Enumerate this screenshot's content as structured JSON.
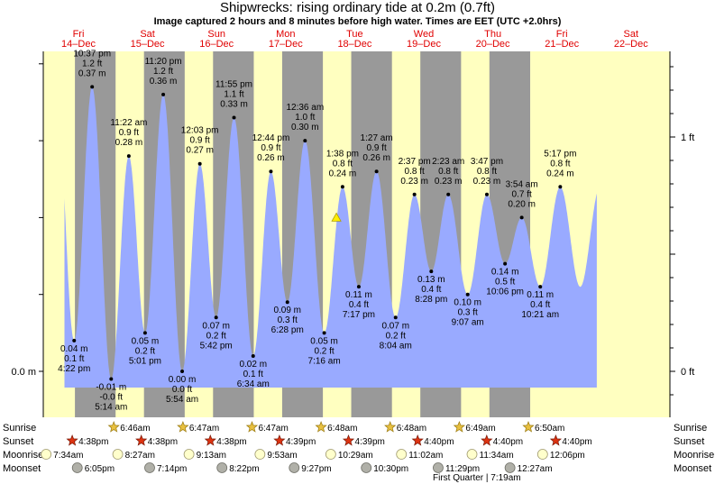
{
  "title": "Shipwrecks: rising  ordinary tide at 0.2m (0.7ft)",
  "subtitle": "Image captured 2 hours and 8 minutes before high water. Times are EET (UTC +2.0hrs)",
  "colors": {
    "day": "#ffffc0",
    "night": "#999999",
    "tide": "#99aaff",
    "date_text": "#e00000",
    "sunrise_star": "#e8c040",
    "sunset_star": "#dd3311",
    "moonrise": "#ffffcc",
    "moonset": "#b0b0a8",
    "current_marker": "#ffee00"
  },
  "chart_data": {
    "type": "area",
    "title": "Shipwrecks: rising  ordinary tide at 0.2m (0.7ft)",
    "y_unit": "m",
    "ylim": [
      -0.07,
      0.47
    ],
    "y_ticks_left": [
      {
        "value": 0.0,
        "label": "0.0 m"
      }
    ],
    "y_ticks_right": [
      {
        "value": 0.0,
        "label": "0 ft"
      },
      {
        "value": 0.3048,
        "label": "1 ft"
      }
    ],
    "days": [
      {
        "dow": "Fri",
        "date": "14–Dec"
      },
      {
        "dow": "Sat",
        "date": "15–Dec"
      },
      {
        "dow": "Sun",
        "date": "16–Dec"
      },
      {
        "dow": "Mon",
        "date": "17–Dec"
      },
      {
        "dow": "Tue",
        "date": "18–Dec"
      },
      {
        "dow": "Wed",
        "date": "19–Dec"
      },
      {
        "dow": "Thu",
        "date": "20–Dec"
      },
      {
        "dow": "Fri",
        "date": "21–Dec"
      },
      {
        "dow": "Sat",
        "date": "22–Dec"
      }
    ],
    "nights": [
      {
        "start": "2018-12-14 16:38",
        "end": "2018-12-15 06:46"
      },
      {
        "start": "2018-12-15 16:38",
        "end": "2018-12-16 06:47"
      },
      {
        "start": "2018-12-16 16:38",
        "end": "2018-12-17 06:47"
      },
      {
        "start": "2018-12-17 16:39",
        "end": "2018-12-18 06:48"
      },
      {
        "start": "2018-12-18 16:39",
        "end": "2018-12-19 06:48"
      },
      {
        "start": "2018-12-19 16:40",
        "end": "2018-12-20 06:49"
      },
      {
        "start": "2018-12-20 16:40",
        "end": "2018-12-21 06:50"
      }
    ],
    "tides": [
      {
        "time": "2018-12-14 16:22",
        "m": 0.04,
        "label": [
          "0.04 m",
          "0.1 ft",
          "4:22 pm"
        ],
        "type": "low"
      },
      {
        "time": "2018-12-14 22:37",
        "m": 0.37,
        "label": [
          "10:37 pm",
          "1.2 ft",
          "0.37 m"
        ],
        "type": "high"
      },
      {
        "time": "2018-12-15 05:14",
        "m": -0.01,
        "label": [
          "-0.01 m",
          "-0.0 ft",
          "5:14 am"
        ],
        "type": "low"
      },
      {
        "time": "2018-12-15 11:22",
        "m": 0.28,
        "label": [
          "11:22 am",
          "0.9 ft",
          "0.28 m"
        ],
        "type": "high"
      },
      {
        "time": "2018-12-15 17:01",
        "m": 0.05,
        "label": [
          "0.05 m",
          "0.2 ft",
          "5:01 pm"
        ],
        "type": "low"
      },
      {
        "time": "2018-12-15 23:20",
        "m": 0.36,
        "label": [
          "11:20 pm",
          "1.2 ft",
          "0.36 m"
        ],
        "type": "high"
      },
      {
        "time": "2018-12-16 05:54",
        "m": 0.0,
        "label": [
          "0.00 m",
          "0.0 ft",
          "5:54 am"
        ],
        "type": "low"
      },
      {
        "time": "2018-12-16 12:03",
        "m": 0.27,
        "label": [
          "12:03 pm",
          "0.9 ft",
          "0.27 m"
        ],
        "type": "high"
      },
      {
        "time": "2018-12-16 17:42",
        "m": 0.07,
        "label": [
          "0.07 m",
          "0.2 ft",
          "5:42 pm"
        ],
        "type": "low"
      },
      {
        "time": "2018-12-16 23:55",
        "m": 0.33,
        "label": [
          "11:55 pm",
          "1.1 ft",
          "0.33 m"
        ],
        "type": "high"
      },
      {
        "time": "2018-12-17 06:34",
        "m": 0.02,
        "label": [
          "0.02 m",
          "0.1 ft",
          "6:34 am"
        ],
        "type": "low"
      },
      {
        "time": "2018-12-17 12:44",
        "m": 0.26,
        "label": [
          "12:44 pm",
          "0.9 ft",
          "0.26 m"
        ],
        "type": "high"
      },
      {
        "time": "2018-12-17 18:28",
        "m": 0.09,
        "label": [
          "0.09 m",
          "0.3 ft",
          "6:28 pm"
        ],
        "type": "low"
      },
      {
        "time": "2018-12-18 00:36",
        "m": 0.3,
        "label": [
          "12:36 am",
          "1.0 ft",
          "0.30 m"
        ],
        "type": "high"
      },
      {
        "time": "2018-12-18 07:16",
        "m": 0.05,
        "label": [
          "0.05 m",
          "0.2 ft",
          "7:16 am"
        ],
        "type": "low"
      },
      {
        "time": "2018-12-18 13:38",
        "m": 0.24,
        "label": [
          "1:38 pm",
          "0.8 ft",
          "0.24 m"
        ],
        "type": "high"
      },
      {
        "time": "2018-12-18 19:17",
        "m": 0.11,
        "label": [
          "0.11 m",
          "0.4 ft",
          "7:17 pm"
        ],
        "type": "low"
      },
      {
        "time": "2018-12-19 01:27",
        "m": 0.26,
        "label": [
          "1:27 am",
          "0.9 ft",
          "0.26 m"
        ],
        "type": "high"
      },
      {
        "time": "2018-12-19 08:04",
        "m": 0.07,
        "label": [
          "0.07 m",
          "0.2 ft",
          "8:04 am"
        ],
        "type": "low"
      },
      {
        "time": "2018-12-19 14:37",
        "m": 0.23,
        "label": [
          "2:37 pm",
          "0.8 ft",
          "0.23 m"
        ],
        "type": "high"
      },
      {
        "time": "2018-12-19 20:28",
        "m": 0.13,
        "label": [
          "0.13 m",
          "0.4 ft",
          "8:28 pm"
        ],
        "type": "low"
      },
      {
        "time": "2018-12-20 02:23",
        "m": 0.23,
        "label": [
          "2:23 am",
          "0.8 ft",
          "0.23 m"
        ],
        "type": "high"
      },
      {
        "time": "2018-12-20 09:07",
        "m": 0.1,
        "label": [
          "0.10 m",
          "0.3 ft",
          "9:07 am"
        ],
        "type": "low"
      },
      {
        "time": "2018-12-20 15:47",
        "m": 0.23,
        "label": [
          "3:47 pm",
          "0.8 ft",
          "0.23 m"
        ],
        "type": "high"
      },
      {
        "time": "2018-12-20 22:06",
        "m": 0.14,
        "label": [
          "0.14 m",
          "0.5 ft",
          "10:06 pm"
        ],
        "type": "low"
      },
      {
        "time": "2018-12-21 03:54",
        "m": 0.2,
        "label": [
          "3:54 am",
          "0.7 ft",
          "0.20 m"
        ],
        "type": "high"
      },
      {
        "time": "2018-12-21 10:21",
        "m": 0.11,
        "label": [
          "0.11 m",
          "0.4 ft",
          "10:21 am"
        ],
        "type": "low"
      },
      {
        "time": "2018-12-21 17:17",
        "m": 0.24,
        "label": [
          "5:17 pm",
          "0.8 ft",
          "0.24 m"
        ],
        "type": "high"
      }
    ],
    "current": {
      "time": "2018-12-18 11:30",
      "m": 0.2
    }
  },
  "bottom_rows": {
    "row_labels": [
      "Sunrise",
      "Sunset",
      "Moonrise",
      "Moonset"
    ],
    "sunrise": [
      {
        "time": "2018-12-15 06:46",
        "label": "6:46am"
      },
      {
        "time": "2018-12-16 06:47",
        "label": "6:47am"
      },
      {
        "time": "2018-12-17 06:47",
        "label": "6:47am"
      },
      {
        "time": "2018-12-18 06:48",
        "label": "6:48am"
      },
      {
        "time": "2018-12-19 06:48",
        "label": "6:48am"
      },
      {
        "time": "2018-12-20 06:49",
        "label": "6:49am"
      },
      {
        "time": "2018-12-21 06:50",
        "label": "6:50am"
      }
    ],
    "sunset": [
      {
        "time": "2018-12-14 16:38",
        "label": "4:38pm"
      },
      {
        "time": "2018-12-15 16:38",
        "label": "4:38pm"
      },
      {
        "time": "2018-12-16 16:38",
        "label": "4:38pm"
      },
      {
        "time": "2018-12-17 16:39",
        "label": "4:39pm"
      },
      {
        "time": "2018-12-18 16:39",
        "label": "4:39pm"
      },
      {
        "time": "2018-12-19 16:40",
        "label": "4:40pm"
      },
      {
        "time": "2018-12-20 16:40",
        "label": "4:40pm"
      },
      {
        "time": "2018-12-21 16:40",
        "label": "4:40pm"
      }
    ],
    "moonrise": [
      {
        "time": "2018-12-14 07:34",
        "label": "7:34am"
      },
      {
        "time": "2018-12-15 08:27",
        "label": "8:27am"
      },
      {
        "time": "2018-12-16 09:13",
        "label": "9:13am"
      },
      {
        "time": "2018-12-17 09:53",
        "label": "9:53am"
      },
      {
        "time": "2018-12-18 10:29",
        "label": "10:29am"
      },
      {
        "time": "2018-12-19 11:02",
        "label": "11:02am"
      },
      {
        "time": "2018-12-20 11:34",
        "label": "11:34am"
      },
      {
        "time": "2018-12-21 12:06",
        "label": "12:06pm"
      }
    ],
    "moonset": [
      {
        "time": "2018-12-14 18:05",
        "label": "6:05pm"
      },
      {
        "time": "2018-12-15 19:14",
        "label": "7:14pm"
      },
      {
        "time": "2018-12-16 20:22",
        "label": "8:22pm"
      },
      {
        "time": "2018-12-17 21:27",
        "label": "9:27pm"
      },
      {
        "time": "2018-12-18 22:30",
        "label": "10:30pm"
      },
      {
        "time": "2018-12-19 23:29",
        "label": "11:29pm"
      },
      {
        "time": "2018-12-21 00:27",
        "label": "12:27am"
      }
    ],
    "moon_phase": "First Quarter | 7:19am"
  }
}
